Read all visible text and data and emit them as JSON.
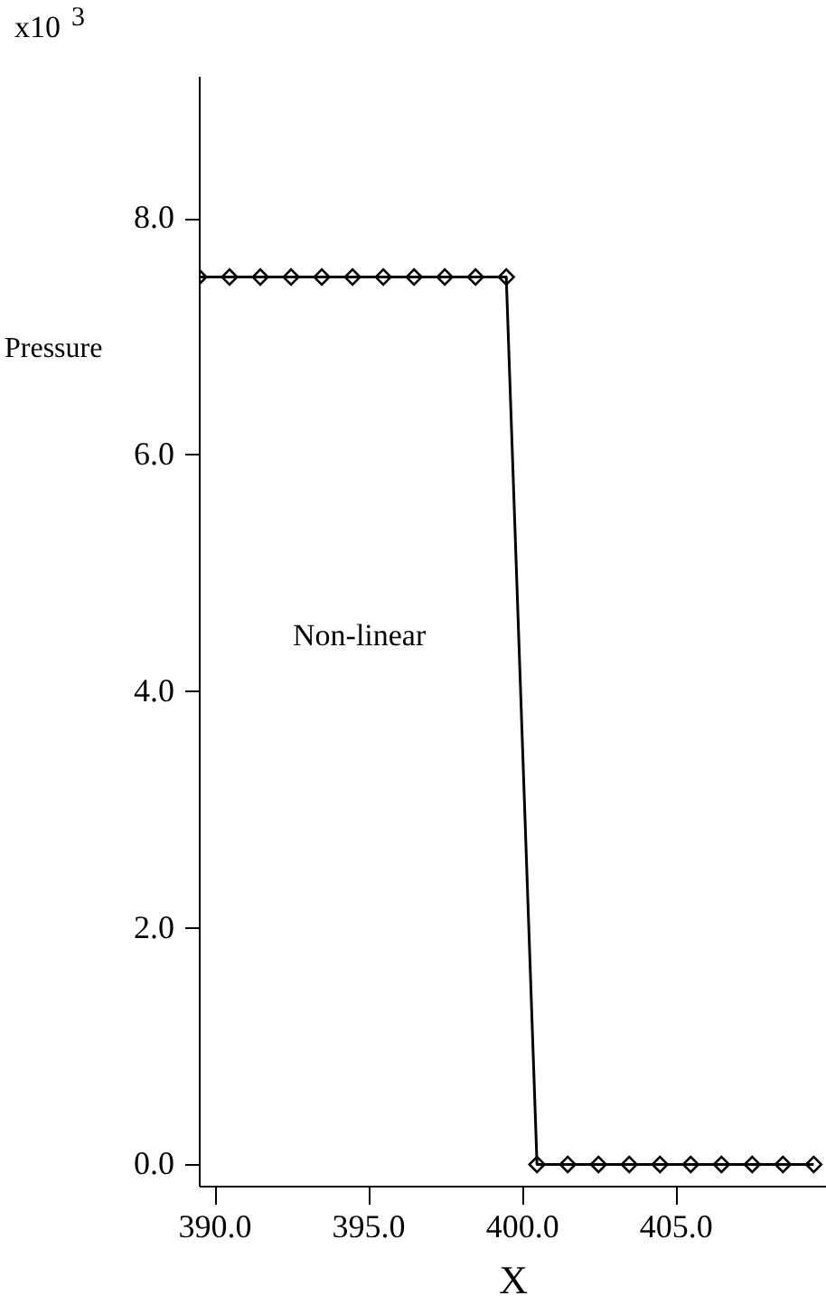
{
  "chart_data": {
    "type": "line",
    "xlabel": "X",
    "ylabel": "Pressure",
    "annotations": [
      "x10$^{3}$",
      "Non-linear"
    ],
    "x": [
      389.5,
      390.5,
      391.5,
      392.5,
      393.5,
      394.5,
      395.5,
      396.5,
      397.5,
      398.5,
      399.5,
      400.5,
      401.5,
      402.5,
      403.5,
      404.5,
      405.5,
      406.5,
      407.5,
      408.5,
      409.5
    ],
    "series": [
      {
        "color": "#000000",
        "values": [
          7.5,
          7.5,
          7.5,
          7.5,
          7.5,
          7.5,
          7.5,
          7.5,
          7.5,
          7.5,
          7.5,
          0.0,
          0.0,
          0.0,
          0.0,
          0.0,
          0.0,
          0.0,
          0.0,
          0.0,
          0.0
        ]
      }
    ],
    "marker": "diamond",
    "line_style": "solid",
    "grid": false,
    "legend": false,
    "xlim": [
      389.5,
      409.9
    ],
    "ylim": [
      -0.18,
      9.2
    ],
    "xticks": [
      {
        "value": 390,
        "label": "390.0"
      },
      {
        "value": 395,
        "label": "395.0"
      },
      {
        "value": 400,
        "label": "400.0"
      },
      {
        "value": 405,
        "label": "405.0"
      }
    ],
    "yticks": [
      {
        "value": 0,
        "label": "0.0"
      },
      {
        "value": 2,
        "label": "2.0"
      },
      {
        "value": 4,
        "label": "4.0"
      },
      {
        "value": 6,
        "label": "6.0"
      },
      {
        "value": 8,
        "label": "8.0"
      }
    ]
  }
}
